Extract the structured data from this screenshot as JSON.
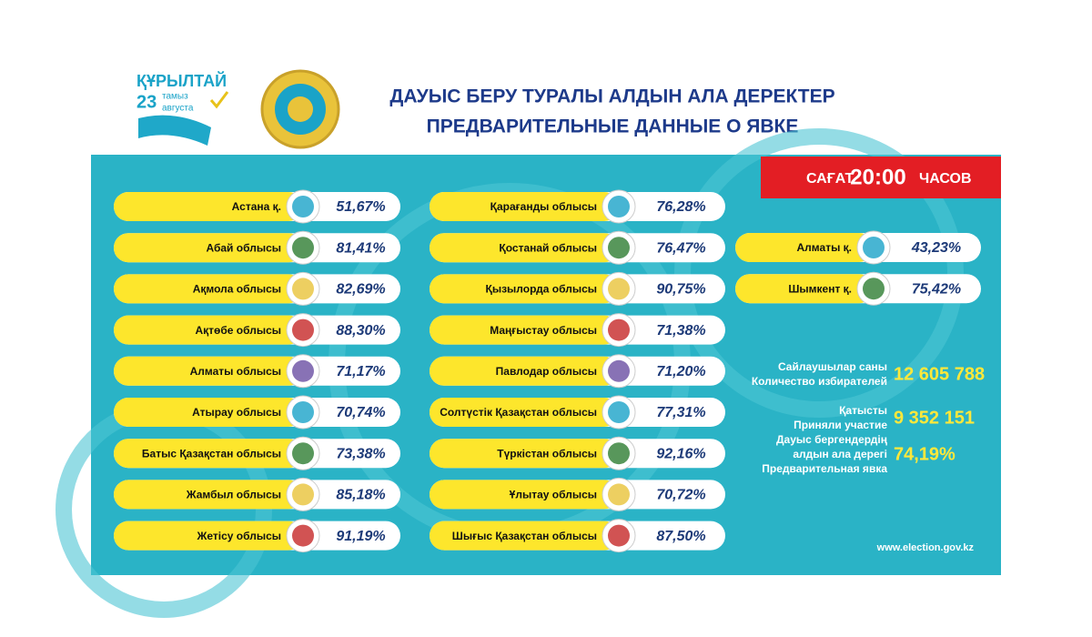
{
  "header": {
    "logo": [
      "ҚҰРЫЛТАЙ",
      "23",
      "тамыз",
      "августа"
    ],
    "title_kz": "ДАУЫС БЕРУ ТУРАЛЫ АЛДЫН АЛА ДЕРЕКТЕР",
    "title_ru": "ПРЕДВАРИТЕЛЬНЫЕ ДАННЫЕ О ЯВКЕ"
  },
  "time_badge": {
    "prefix": "САҒАТ",
    "time": "20:00",
    "suffix": "ЧАСОВ"
  },
  "regions": {
    "left": [
      {
        "name": "Астана  қ.",
        "turnout": "51,67%"
      },
      {
        "name": "Абай облысы",
        "turnout": "81,41%"
      },
      {
        "name": "Ақмола облысы",
        "turnout": "82,69%"
      },
      {
        "name": "Ақтөбе облысы",
        "turnout": "88,30%"
      },
      {
        "name": "Алматы облысы",
        "turnout": "71,17%"
      },
      {
        "name": "Атырау  облысы",
        "turnout": "70,74%"
      },
      {
        "name": "Батыс Қазақстан облысы",
        "turnout": "73,38%"
      },
      {
        "name": "Жамбыл облысы",
        "turnout": "85,18%"
      },
      {
        "name": "Жетісу облысы",
        "turnout": "91,19%"
      }
    ],
    "middle": [
      {
        "name": "Қарағанды облысы",
        "turnout": "76,28%"
      },
      {
        "name": "Қостанай облысы",
        "turnout": "76,47%"
      },
      {
        "name": "Қызылорда облысы",
        "turnout": "90,75%"
      },
      {
        "name": "Маңғыстау облысы",
        "turnout": "71,38%"
      },
      {
        "name": "Павлодар облысы",
        "turnout": "71,20%"
      },
      {
        "name": "Солтүстік Қазақстан облысы",
        "turnout": "77,31%"
      },
      {
        "name": "Түркістан облысы",
        "turnout": "92,16%"
      },
      {
        "name": "Ұлытау облысы",
        "turnout": "70,72%"
      },
      {
        "name": "Шығыс Қазақстан облысы",
        "turnout": "87,50%"
      }
    ],
    "right": [
      {
        "name": "Алматы қ.",
        "turnout": "43,23%"
      },
      {
        "name": "Шымкент қ.",
        "turnout": "75,42%"
      }
    ]
  },
  "stats": [
    {
      "label": [
        "Сайлаушылар саны",
        "Количество избирателей"
      ],
      "value": "12 605 788"
    },
    {
      "label": [
        "Қатысты",
        "Приняли участие"
      ],
      "value": "9 352 151"
    },
    {
      "label": [
        "Дауыс бергендердің",
        "алдын ала дерегі",
        "Предварительная явка"
      ],
      "value": "74,19%"
    }
  ],
  "website": "www.election.gov.kz"
}
